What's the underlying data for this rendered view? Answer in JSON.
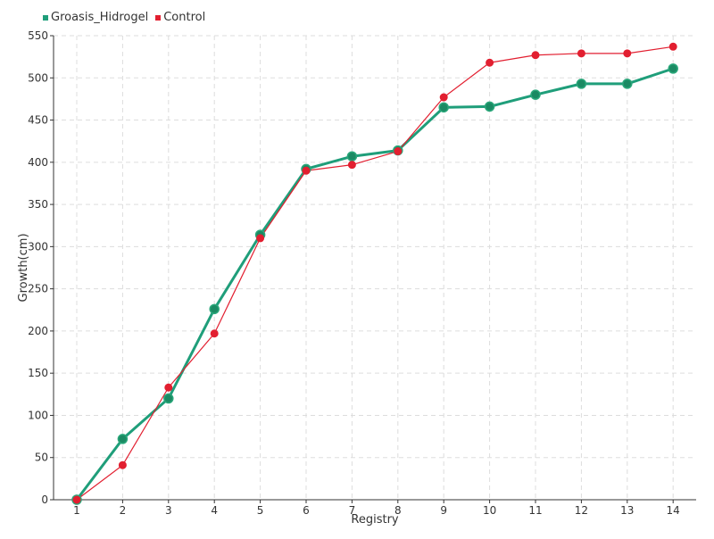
{
  "chart_data": {
    "type": "line",
    "title": "",
    "xlabel": "Registry",
    "ylabel": "Growth(cm)",
    "categories": [
      "1",
      "2",
      "3",
      "4",
      "5",
      "6",
      "7",
      "8",
      "9",
      "10",
      "11",
      "12",
      "13",
      "14"
    ],
    "y_ticks": [
      "0",
      "50",
      "100",
      "150",
      "200",
      "250",
      "300",
      "350",
      "400",
      "450",
      "500",
      "550"
    ],
    "ylim": [
      0,
      550
    ],
    "grid": true,
    "legend_position": "top-left",
    "series": [
      {
        "name": "Groasis_Hidrogel",
        "color": "#1f9e7a",
        "values": [
          0,
          72,
          120,
          226,
          314,
          392,
          407,
          414,
          465,
          466,
          480,
          493,
          493,
          511
        ]
      },
      {
        "name": "Control",
        "color": "#e21f30",
        "values": [
          0,
          41,
          133,
          197,
          310,
          390,
          397,
          413,
          477,
          518,
          527,
          529,
          529,
          537
        ]
      }
    ]
  }
}
